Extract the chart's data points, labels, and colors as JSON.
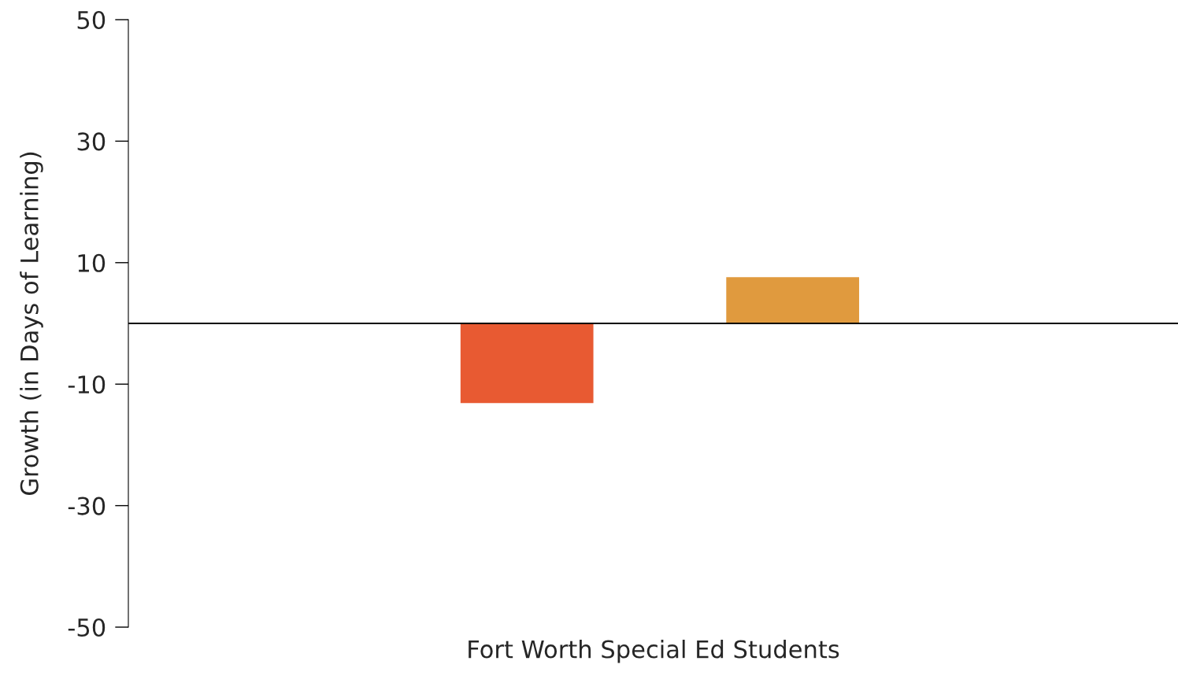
{
  "chart_data": {
    "type": "bar",
    "xlabel": "Fort Worth Special Ed Students",
    "ylabel": "Growth (in Days of Learning)",
    "categories": [
      null,
      null
    ],
    "values": [
      -13.1,
      7.6
    ],
    "colors": [
      "#e85a32",
      "#e09a3e"
    ],
    "ylim": [
      -50,
      50
    ],
    "yticks": [
      -50,
      -30,
      -10,
      10,
      30,
      50
    ],
    "ref_lines": [
      {
        "axis": "y",
        "value": 0,
        "color": "#000000"
      }
    ],
    "grid": false,
    "legend": false
  }
}
